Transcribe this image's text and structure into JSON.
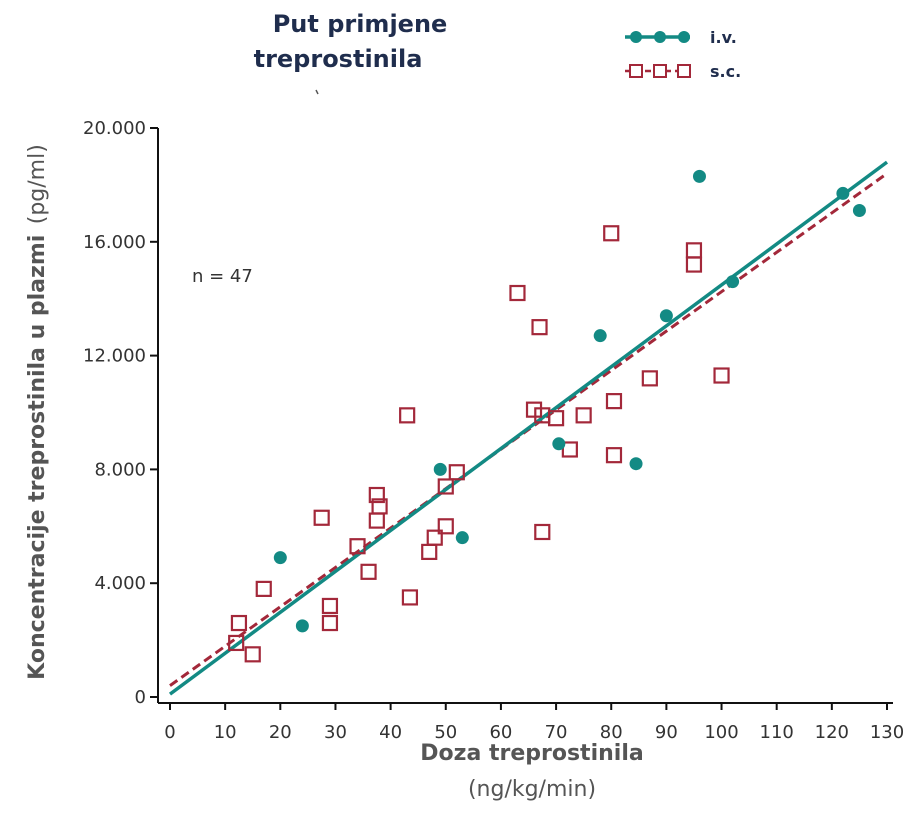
{
  "colors": {
    "iv": "#138a84",
    "sc": "#a3283a",
    "axis": "#111111",
    "text": "#333333",
    "title": "#1f2d4d"
  },
  "legend": {
    "title_line1": "Put primjene",
    "title_line2": "treprostinila",
    "iv_label": "i.v.",
    "sc_label": "s.c."
  },
  "annotation": "n = 47",
  "chart_data": {
    "type": "scatter",
    "xlabel_main": "Doza treprostinila",
    "xlabel_unit": "(ng/kg/min)",
    "ylabel_main": "Koncentracije treprostinila u plazmi",
    "ylabel_unit": "(pg/ml)",
    "xlim": [
      0,
      130
    ],
    "ylim": [
      0,
      20000
    ],
    "x_ticks": [
      0,
      10,
      20,
      30,
      40,
      50,
      60,
      70,
      80,
      90,
      100,
      110,
      120,
      130
    ],
    "x_tick_labels": [
      "0",
      "10",
      "20",
      "30",
      "40",
      "50",
      "60",
      "70",
      "80",
      "90",
      "100",
      "110",
      "120",
      "130"
    ],
    "y_ticks": [
      0,
      4000,
      8000,
      12000,
      16000,
      20000
    ],
    "y_tick_labels": [
      "0",
      "4.000",
      "8.000",
      "12.000",
      "16.000",
      "20.000"
    ],
    "series": [
      {
        "name": "i.v.",
        "marker": "filled-circle",
        "line": "solid",
        "points": [
          [
            20,
            4900
          ],
          [
            24,
            2500
          ],
          [
            49,
            8000
          ],
          [
            53,
            5600
          ],
          [
            70.5,
            8900
          ],
          [
            78,
            12700
          ],
          [
            84.5,
            8200
          ],
          [
            90,
            13400
          ],
          [
            96,
            18300
          ],
          [
            102,
            14600
          ],
          [
            122,
            17700
          ],
          [
            125,
            17100
          ]
        ],
        "fit": [
          [
            0,
            100
          ],
          [
            130,
            18800
          ]
        ]
      },
      {
        "name": "s.c.",
        "marker": "open-square",
        "line": "dashed",
        "points": [
          [
            12,
            1900
          ],
          [
            12.5,
            2600
          ],
          [
            15,
            1500
          ],
          [
            17,
            3800
          ],
          [
            27.5,
            6300
          ],
          [
            29,
            3200
          ],
          [
            29,
            2600
          ],
          [
            34,
            5300
          ],
          [
            36,
            4400
          ],
          [
            37.5,
            6200
          ],
          [
            37.5,
            7100
          ],
          [
            38,
            6700
          ],
          [
            43,
            9900
          ],
          [
            43.5,
            3500
          ],
          [
            47,
            5100
          ],
          [
            48,
            5600
          ],
          [
            50,
            6000
          ],
          [
            50,
            7400
          ],
          [
            52,
            7900
          ],
          [
            63,
            14200
          ],
          [
            66,
            10100
          ],
          [
            67,
            13000
          ],
          [
            67.5,
            9900
          ],
          [
            67.5,
            5800
          ],
          [
            70,
            9800
          ],
          [
            72.5,
            8700
          ],
          [
            75,
            9900
          ],
          [
            80,
            16300
          ],
          [
            80.5,
            10400
          ],
          [
            80.5,
            8500
          ],
          [
            87,
            11200
          ],
          [
            95,
            15700
          ],
          [
            95,
            15200
          ],
          [
            100,
            11300
          ]
        ],
        "fit": [
          [
            0,
            400
          ],
          [
            130,
            18400
          ]
        ]
      }
    ]
  }
}
